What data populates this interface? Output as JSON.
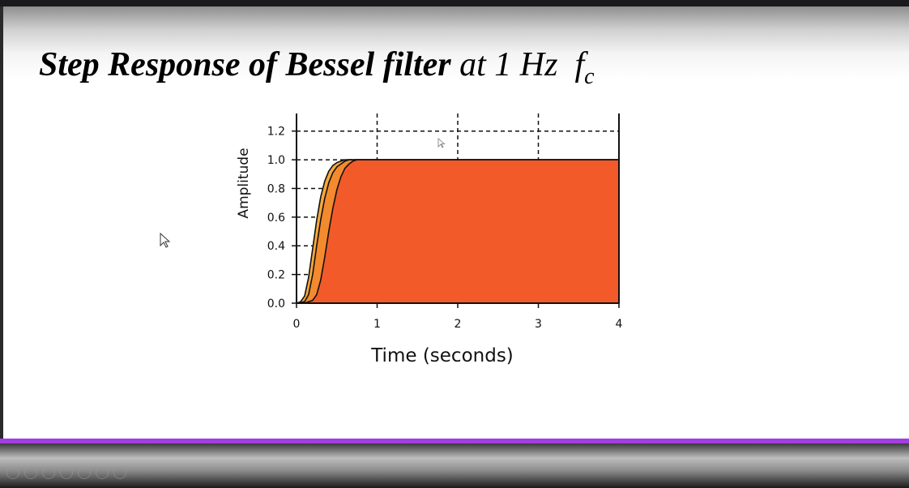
{
  "slide": {
    "title_bold": "Step Response of Bessel filter",
    "title_rest": "at 1 Hz",
    "title_symbol": "f",
    "title_subscript": "c"
  },
  "chart_data": {
    "type": "area",
    "xlabel": "Time (seconds)",
    "ylabel": "Amplitude",
    "xlim": [
      0,
      4
    ],
    "ylim": [
      0,
      1.3
    ],
    "xticks": [
      "0",
      "1",
      "2",
      "3",
      "4"
    ],
    "yticks": [
      "0.0",
      "0.2",
      "0.4",
      "0.6",
      "0.8",
      "1.0",
      "1.2"
    ],
    "grid": "dashed",
    "series": [
      {
        "color": "#f6a83a",
        "x": [
          0,
          0.05,
          0.1,
          0.15,
          0.2,
          0.25,
          0.3,
          0.35,
          0.4,
          0.45,
          0.5,
          0.55,
          0.6,
          0.65,
          0.7,
          4
        ],
        "y": [
          0,
          0.01,
          0.05,
          0.18,
          0.38,
          0.58,
          0.74,
          0.85,
          0.92,
          0.96,
          0.98,
          0.99,
          1.0,
          1.0,
          1.0,
          1.0
        ]
      },
      {
        "color": "#f48a2e",
        "x": [
          0,
          0.1,
          0.15,
          0.2,
          0.25,
          0.3,
          0.35,
          0.4,
          0.45,
          0.5,
          0.55,
          0.6,
          0.65,
          0.7,
          0.8,
          4
        ],
        "y": [
          0,
          0.01,
          0.06,
          0.2,
          0.4,
          0.58,
          0.73,
          0.84,
          0.91,
          0.95,
          0.97,
          0.99,
          1.0,
          1.0,
          1.0,
          1.0
        ]
      },
      {
        "color": "#f25a2a",
        "x": [
          0,
          0.1,
          0.2,
          0.25,
          0.3,
          0.35,
          0.4,
          0.45,
          0.5,
          0.55,
          0.6,
          0.65,
          0.7,
          0.75,
          0.8,
          0.9,
          4
        ],
        "y": [
          0,
          0.0,
          0.02,
          0.06,
          0.16,
          0.32,
          0.5,
          0.66,
          0.79,
          0.88,
          0.94,
          0.97,
          0.99,
          1.0,
          1.0,
          1.0,
          1.0
        ]
      }
    ]
  },
  "colors": {
    "accent_progress": "#a23fe0",
    "plot_fill_main": "#f25a2a"
  },
  "player": {
    "controls": [
      "prev-icon",
      "play-icon",
      "pen-icon",
      "search-icon",
      "zoom-in-icon",
      "zoom-out-icon",
      "menu-icon"
    ]
  }
}
